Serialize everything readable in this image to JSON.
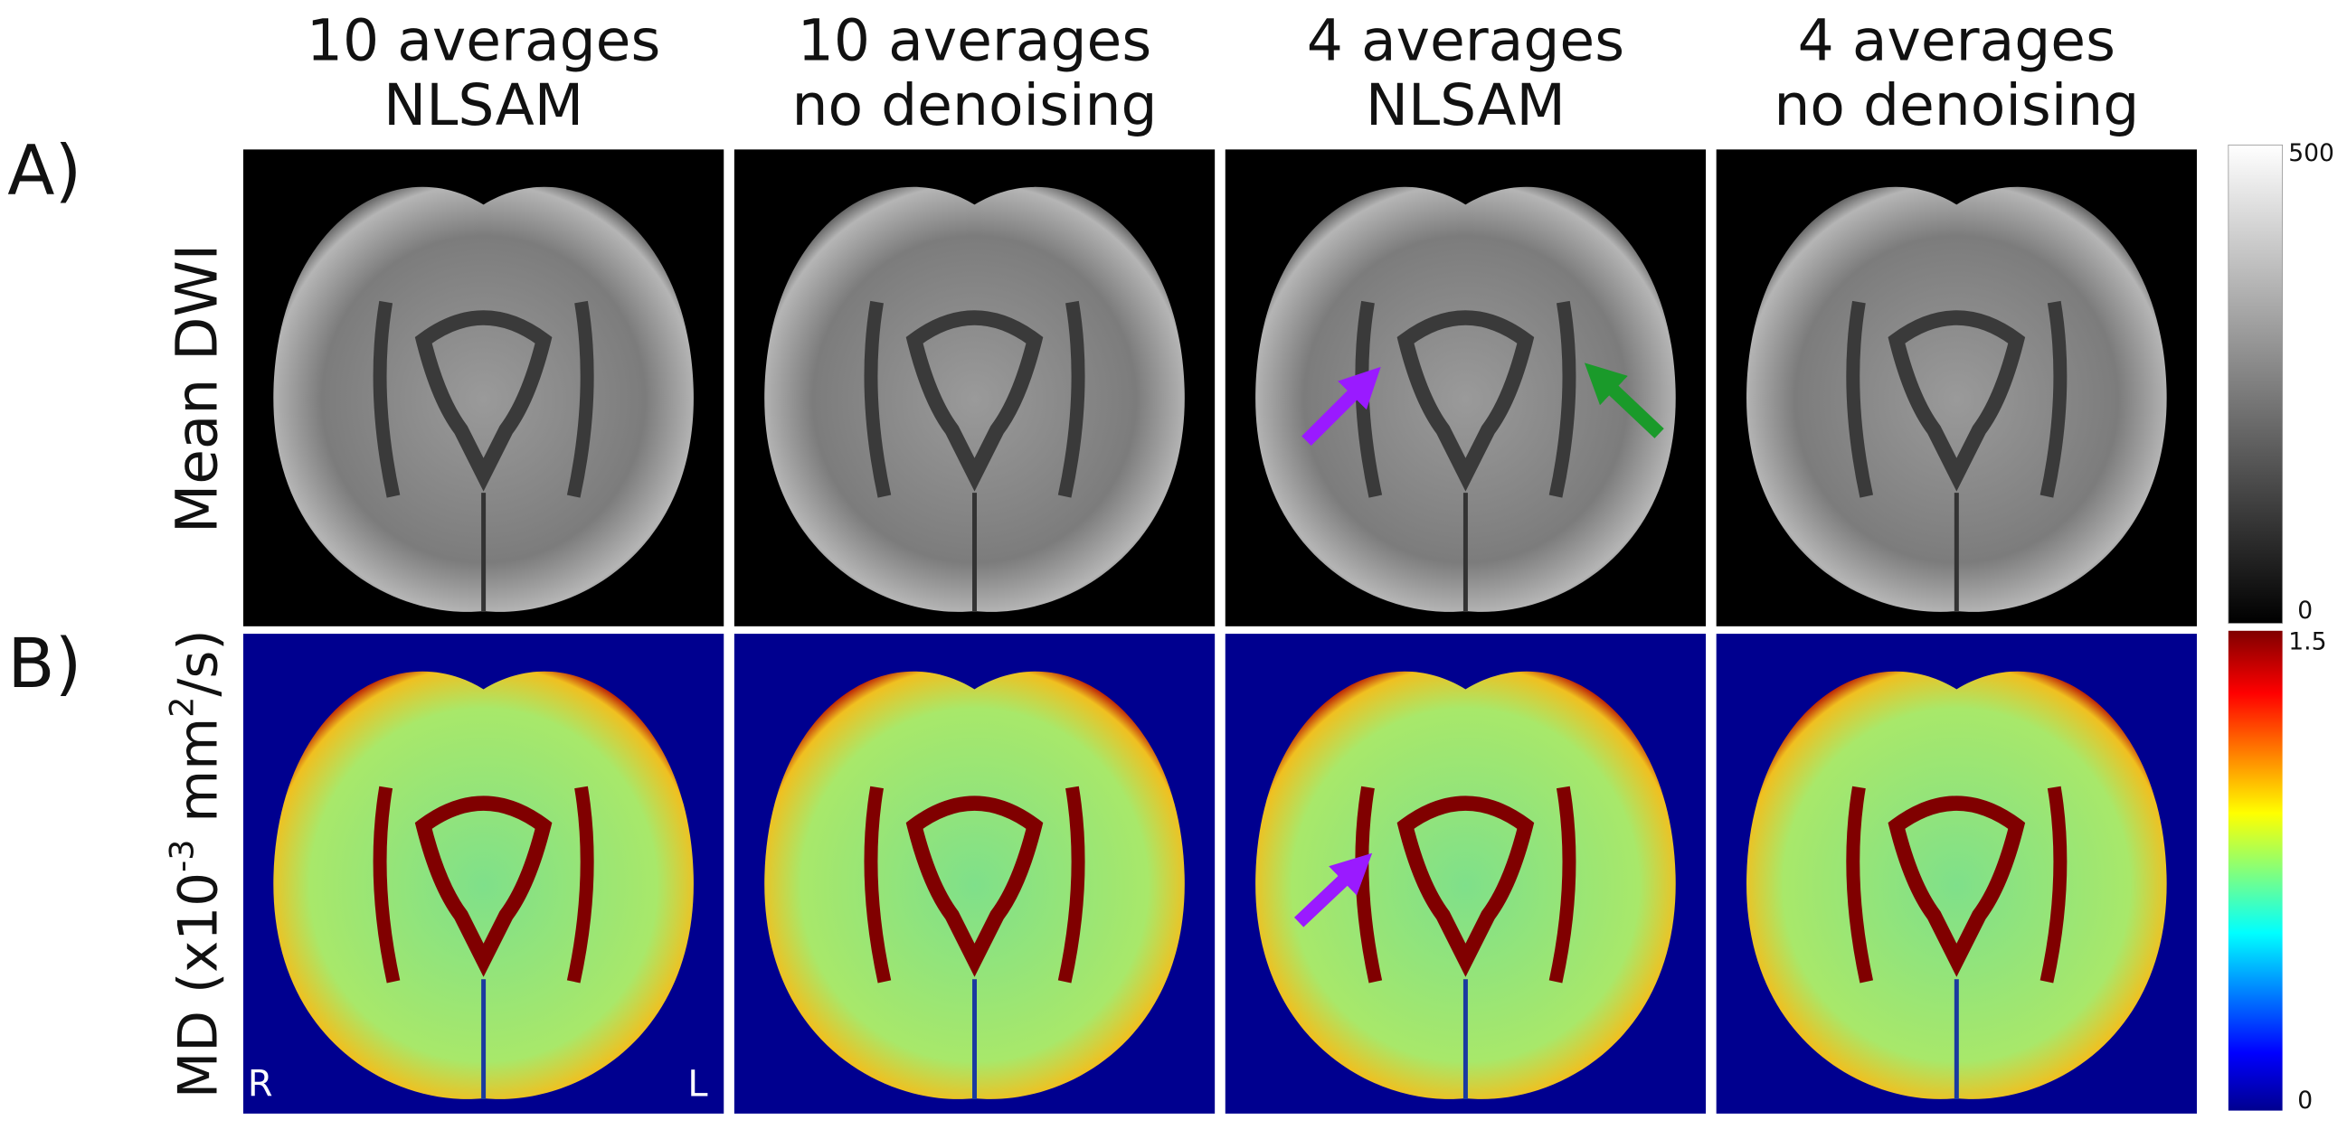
{
  "columns": [
    {
      "line1": "10 averages",
      "line2": "NLSAM"
    },
    {
      "line1": "10 averages",
      "line2": "no denoising"
    },
    {
      "line1": "4 averages",
      "line2": "NLSAM"
    },
    {
      "line1": "4 averages",
      "line2": "no denoising"
    }
  ],
  "rows": [
    {
      "letter": "A)",
      "label": "Mean DWI",
      "colorbar": {
        "max": "500",
        "min": "0"
      }
    },
    {
      "letter": "B)",
      "label": {
        "prefix": "MD (x10",
        "sup1": "-3",
        "mid": " mm",
        "sup2": "2",
        "suffix": "/s)"
      },
      "colorbar": {
        "max": "1.5",
        "min": "0"
      }
    }
  ],
  "orientation": {
    "right": "R",
    "left": "L"
  }
}
